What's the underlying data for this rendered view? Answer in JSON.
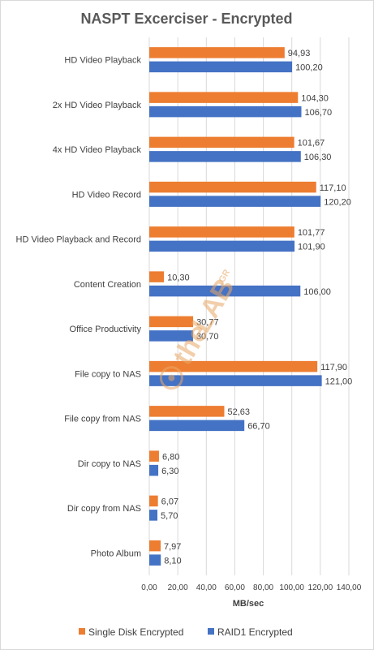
{
  "chart_data": {
    "type": "bar",
    "orientation": "horizontal",
    "title": "NASPT Excerciser - Encrypted",
    "xlabel": "MB/sec",
    "ylabel": "",
    "xlim": [
      0,
      140
    ],
    "x_ticks": [
      "0,00",
      "20,00",
      "40,00",
      "60,00",
      "80,00",
      "100,00",
      "120,00",
      "140,00"
    ],
    "grid": true,
    "legend_position": "bottom",
    "categories": [
      "HD Video Playback",
      "2x HD Video Playback",
      "4x HD Video Playback",
      "HD Video Record",
      "HD Video Playback and Record",
      "Content Creation",
      "Office Productivity",
      "File copy to NAS",
      "File copy from NAS",
      "Dir copy to NAS",
      "Dir copy from NAS",
      "Photo Album"
    ],
    "series": [
      {
        "name": "Single Disk Encrypted",
        "color": "#ED7D31",
        "values": [
          94.93,
          104.3,
          101.67,
          117.1,
          101.77,
          10.3,
          30.77,
          117.9,
          52.63,
          6.8,
          6.07,
          7.97
        ],
        "labels": [
          "94,93",
          "104,30",
          "101,67",
          "117,10",
          "101,77",
          "10,30",
          "30,77",
          "117,90",
          "52,63",
          "6,80",
          "6,07",
          "7,97"
        ]
      },
      {
        "name": "RAID1 Encrypted",
        "color": "#4472C4",
        "values": [
          100.2,
          106.7,
          106.3,
          120.2,
          101.9,
          106.0,
          30.7,
          121.0,
          66.7,
          6.3,
          5.7,
          8.1
        ],
        "labels": [
          "100,20",
          "106,70",
          "106,30",
          "120,20",
          "101,90",
          "106,00",
          "30,70",
          "121,00",
          "66,70",
          "6,30",
          "5,70",
          "8,10"
        ]
      }
    ]
  },
  "watermark": {
    "prefix": "the",
    "main": "LAB",
    "suffix": ".GR",
    "color": "#ED7D31"
  }
}
